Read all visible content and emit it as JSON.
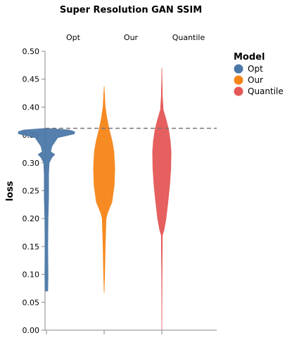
{
  "chart_data": {
    "type": "violin",
    "title": "Super Resolution GAN SSIM",
    "ylabel": "loss",
    "ylim": [
      0,
      0.5
    ],
    "yticks": [
      "0.00",
      "0.05",
      "0.10",
      "0.15",
      "0.20",
      "0.25",
      "0.30",
      "0.35",
      "0.40",
      "0.45",
      "0.50"
    ],
    "reference_line": 0.362,
    "legend_title": "Model",
    "legend_position": "top-right",
    "series": [
      {
        "name": "Opt",
        "color": "#4c78a8",
        "range": [
          0.07,
          0.362
        ],
        "density": [
          [
            0.07,
            0.05
          ],
          [
            0.1,
            0.06
          ],
          [
            0.15,
            0.05
          ],
          [
            0.2,
            0.06
          ],
          [
            0.24,
            0.08
          ],
          [
            0.28,
            0.08
          ],
          [
            0.3,
            0.1
          ],
          [
            0.31,
            0.2
          ],
          [
            0.315,
            0.3
          ],
          [
            0.32,
            0.15
          ],
          [
            0.33,
            0.2
          ],
          [
            0.345,
            0.4
          ],
          [
            0.352,
            1.0
          ],
          [
            0.356,
            1.0
          ],
          [
            0.359,
            0.8
          ],
          [
            0.362,
            0.0
          ]
        ]
      },
      {
        "name": "Our",
        "color": "#f58518",
        "range": [
          0.067,
          0.437
        ],
        "density": [
          [
            0.067,
            0.0
          ],
          [
            0.1,
            0.02
          ],
          [
            0.15,
            0.04
          ],
          [
            0.2,
            0.07
          ],
          [
            0.21,
            0.12
          ],
          [
            0.23,
            0.28
          ],
          [
            0.26,
            0.36
          ],
          [
            0.29,
            0.38
          ],
          [
            0.32,
            0.35
          ],
          [
            0.34,
            0.28
          ],
          [
            0.36,
            0.18
          ],
          [
            0.38,
            0.1
          ],
          [
            0.4,
            0.04
          ],
          [
            0.437,
            0.0
          ]
        ]
      },
      {
        "name": "Quantile",
        "color": "#e45756",
        "range": [
          0.0,
          0.47
        ],
        "density": [
          [
            0.0,
            0.0
          ],
          [
            0.1,
            0.01
          ],
          [
            0.17,
            0.02
          ],
          [
            0.18,
            0.08
          ],
          [
            0.2,
            0.15
          ],
          [
            0.23,
            0.22
          ],
          [
            0.26,
            0.28
          ],
          [
            0.29,
            0.32
          ],
          [
            0.32,
            0.33
          ],
          [
            0.34,
            0.3
          ],
          [
            0.36,
            0.24
          ],
          [
            0.38,
            0.14
          ],
          [
            0.395,
            0.05
          ],
          [
            0.42,
            0.02
          ],
          [
            0.47,
            0.0
          ]
        ]
      }
    ]
  }
}
